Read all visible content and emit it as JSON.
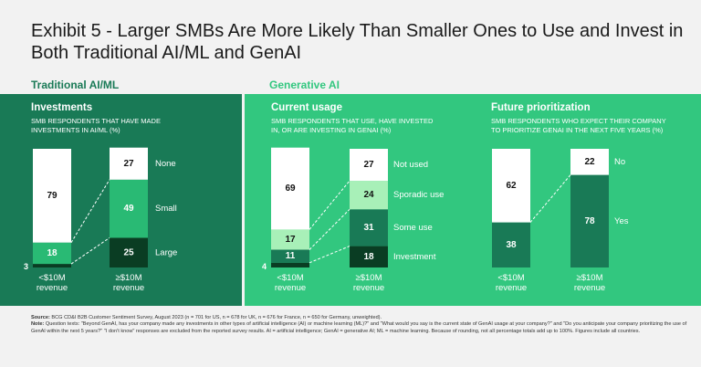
{
  "title": "Exhibit 5 - Larger SMBs Are More Likely Than Smaller Ones to Use and Invest in Both Traditional AI/ML and GenAI",
  "sections": {
    "traditional": "Traditional AI/ML",
    "generative": "Generative AI"
  },
  "colors": {
    "traditional_bg": "#197a56",
    "generative_bg": "#32c77f",
    "white": "#ffffff",
    "mid_green": "#29ba74",
    "light_green": "#a8f0b8",
    "teal_green": "#197a56",
    "dark_green": "#0a3d23"
  },
  "panels": [
    {
      "title": "Investments",
      "subtitle_line1": "SMB RESPONDENTS THAT HAVE MADE",
      "subtitle_line2": "INVESTMENTS IN AI/ML (%)",
      "x_labels": [
        [
          "<$10M",
          "revenue"
        ],
        [
          "≥$10M",
          "revenue"
        ]
      ],
      "legend": [
        "None",
        "Small",
        "Large"
      ]
    },
    {
      "title": "Current usage",
      "subtitle_line1": "SMB RESPONDENTS THAT USE, HAVE INVESTED",
      "subtitle_line2": "IN, OR ARE INVESTING IN GENAI (%)",
      "x_labels": [
        [
          "<$10M",
          "revenue"
        ],
        [
          "≥$10M",
          "revenue"
        ]
      ],
      "legend": [
        "Not used",
        "Sporadic use",
        "Some use",
        "Investment"
      ]
    },
    {
      "title": "Future prioritization",
      "subtitle_line1": "SMB RESPONDENTS WHO EXPECT THEIR COMPANY",
      "subtitle_line2": "TO PRIORITIZE GENAI IN THE NEXT FIVE YEARS (%)",
      "x_labels": [
        [
          "<$10M",
          "revenue"
        ],
        [
          "≥$10M",
          "revenue"
        ]
      ],
      "legend": [
        "No",
        "Yes"
      ]
    }
  ],
  "chart_data": [
    {
      "type": "bar",
      "stacked": true,
      "title": "Investments",
      "ylabel": "SMB respondents that have made investments in AI/ML (%)",
      "categories": [
        "<$10M revenue",
        "≥$10M revenue"
      ],
      "series": [
        {
          "name": "Large",
          "values": [
            3,
            25
          ]
        },
        {
          "name": "Small",
          "values": [
            18,
            49
          ]
        },
        {
          "name": "None",
          "values": [
            79,
            27
          ]
        }
      ],
      "ylim": [
        0,
        100
      ]
    },
    {
      "type": "bar",
      "stacked": true,
      "title": "Current usage",
      "ylabel": "SMB respondents that use, have invested in, or are investing in GenAI (%)",
      "categories": [
        "<$10M revenue",
        "≥$10M revenue"
      ],
      "series": [
        {
          "name": "Investment",
          "values": [
            4,
            18
          ]
        },
        {
          "name": "Some use",
          "values": [
            11,
            31
          ]
        },
        {
          "name": "Sporadic use",
          "values": [
            17,
            24
          ]
        },
        {
          "name": "Not used",
          "values": [
            69,
            27
          ]
        }
      ],
      "ylim": [
        0,
        100
      ]
    },
    {
      "type": "bar",
      "stacked": true,
      "title": "Future prioritization",
      "ylabel": "SMB respondents who expect their company to prioritize GenAI in the next five years (%)",
      "categories": [
        "<$10M revenue",
        "≥$10M revenue"
      ],
      "series": [
        {
          "name": "Yes",
          "values": [
            38,
            78
          ]
        },
        {
          "name": "No",
          "values": [
            62,
            22
          ]
        }
      ],
      "ylim": [
        0,
        100
      ]
    }
  ],
  "footnote": {
    "source_label": "Source:",
    "source_text": "BCG CD&I B2B Customer Sentiment Survey, August 2023 (n = 701 for US, n = 678 for UK, n = 676 for France, n = 650 for Germany, unweighted).",
    "note_label": "Note:",
    "note_text": "Question texts: \"Beyond GenAI, has your company made any investments in other types of artificial intelligence (AI) or machine learning (ML)?\" and \"What would you say is the current state of GenAI usage at your company?\" and \"Do you anticipate your company prioritizing the use of GenAI within the next 5 years?\" \"I don't know\" responses are excluded from the reported survey results. AI = artificial intelligence; GenAI = generative AI; ML = machine learning. Because of rounding, not all percentage totals add up to 100%. Figures include all countries."
  }
}
